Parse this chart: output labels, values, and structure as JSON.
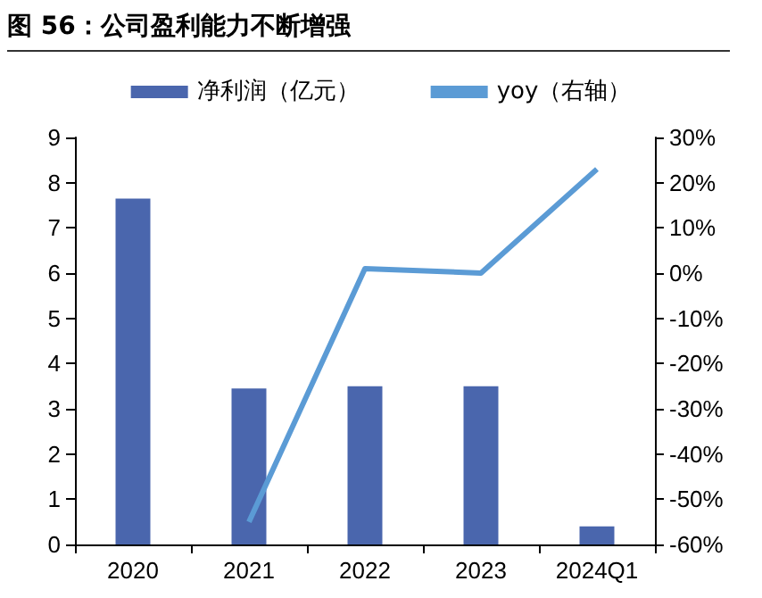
{
  "chart_data": {
    "type": "bar",
    "title": "图 56：公司盈利能力不断增强",
    "categories": [
      "2020",
      "2021",
      "2022",
      "2023",
      "2024Q1"
    ],
    "series": [
      {
        "name": "净利润（亿元）",
        "color": "#4a66ad",
        "values": [
          7.65,
          3.45,
          3.5,
          3.5,
          0.4
        ]
      },
      {
        "name": "yoy（右轴）",
        "type": "line",
        "axis": "y2",
        "color": "#5b9bd5",
        "values": [
          null,
          -55,
          1,
          0,
          23
        ]
      }
    ],
    "ylim": [
      0,
      9
    ],
    "yticks": [
      0,
      1,
      2,
      3,
      4,
      5,
      6,
      7,
      8,
      9
    ],
    "y2lim": [
      -60,
      30
    ],
    "y2ticks": [
      {
        "value": -60,
        "label": "-60%"
      },
      {
        "value": -50,
        "label": "-50%"
      },
      {
        "value": -40,
        "label": "-40%"
      },
      {
        "value": -30,
        "label": "-30%"
      },
      {
        "value": -20,
        "label": "-20%"
      },
      {
        "value": -10,
        "label": "-10%"
      },
      {
        "value": 0,
        "label": "0%"
      },
      {
        "value": 10,
        "label": "10%"
      },
      {
        "value": 20,
        "label": "20%"
      },
      {
        "value": 30,
        "label": "30%"
      }
    ],
    "grid": false,
    "legend": "top",
    "marker": "none"
  }
}
